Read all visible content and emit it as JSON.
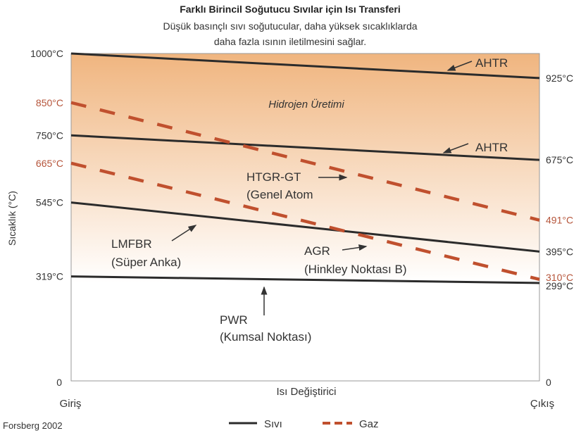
{
  "chart_data": {
    "type": "line",
    "title": "Farklı Birincil Soğutucu Sıvılar için Isı Transferi",
    "subtitle_lines": [
      "Düşük basınçlı sıvı soğutucular, daha yüksek sıcaklıklarda",
      "daha fazla ısının iletilmesini sağlar."
    ],
    "ylabel": "Sıcaklık (°C)",
    "xlabel": "Isı Değiştirici",
    "x_categories": [
      "Giriş",
      "Çıkış"
    ],
    "ylim": [
      0,
      1000
    ],
    "zero_label": "0",
    "region_label": "Hidrojen Üretimi",
    "source": "Forsberg 2002",
    "legend": [
      {
        "name": "Sıvı",
        "style": "solid"
      },
      {
        "name": "Gaz",
        "style": "dashed"
      }
    ],
    "colors": {
      "liquid": "#2b2b2b",
      "gas": "#c0502e",
      "gas_label": "#b5543a",
      "gradient_top": "#f0b57f"
    },
    "series": [
      {
        "name": "AHTR",
        "line2": "",
        "kind": "liquid",
        "start": 1000,
        "end": 925,
        "start_label": "1000°C",
        "end_label": "925°C"
      },
      {
        "name": "AHTR",
        "line2": "",
        "kind": "liquid",
        "start": 750,
        "end": 675,
        "start_label": "750°C",
        "end_label": "675°C"
      },
      {
        "name": "LMFBR",
        "line2": "(Süper Anka)",
        "kind": "liquid",
        "start": 545,
        "end": 395,
        "start_label": "545°C",
        "end_label": "395°C"
      },
      {
        "name": "PWR",
        "line2": "(Kumsal Noktası)",
        "kind": "liquid",
        "start": 319,
        "end": 299,
        "start_label": "319°C",
        "end_label": "299°C"
      },
      {
        "name": "HTGR-GT",
        "line2": "(Genel Atom",
        "kind": "gas",
        "start": 850,
        "end": 491,
        "start_label": "850°C",
        "end_label": "491°C"
      },
      {
        "name": "AGR",
        "line2": "(Hinkley Noktası B)",
        "kind": "gas",
        "start": 665,
        "end": 310,
        "start_label": "665°C",
        "end_label": "310°C"
      }
    ]
  }
}
